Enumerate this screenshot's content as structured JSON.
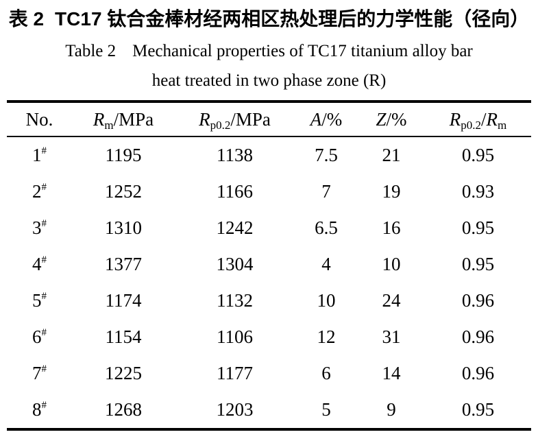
{
  "page": {
    "background_color": "#ffffff",
    "text_color": "#000000"
  },
  "titles": {
    "chinese_prefix": "表 2",
    "chinese_text": "TC17 钛合金棒材经两相区热处理后的力学性能（径向）",
    "english_prefix": "Table 2",
    "english_text": "Mechanical properties of TC17 titanium alloy bar",
    "english_line2": "heat treated in two phase zone (R)"
  },
  "table": {
    "superscript_mark": "#",
    "columns": [
      {
        "label": "No."
      },
      {
        "symbol": "R",
        "sub": "m",
        "suffix": "/MPa"
      },
      {
        "symbol": "R",
        "sub": "p0.2",
        "suffix": "/MPa"
      },
      {
        "symbol": "A",
        "suffix": "/%"
      },
      {
        "symbol": "Z",
        "suffix": "/%"
      },
      {
        "symbol": "R",
        "sub": "p0.2",
        "slash": "/",
        "symbol2": "R",
        "sub2": "m"
      }
    ],
    "rows": [
      {
        "no": "1",
        "rm": "1195",
        "rp02": "1138",
        "a": "7.5",
        "z": "21",
        "ratio": "0.95"
      },
      {
        "no": "2",
        "rm": "1252",
        "rp02": "1166",
        "a": "7",
        "z": "19",
        "ratio": "0.93"
      },
      {
        "no": "3",
        "rm": "1310",
        "rp02": "1242",
        "a": "6.5",
        "z": "16",
        "ratio": "0.95"
      },
      {
        "no": "4",
        "rm": "1377",
        "rp02": "1304",
        "a": "4",
        "z": "10",
        "ratio": "0.95"
      },
      {
        "no": "5",
        "rm": "1174",
        "rp02": "1132",
        "a": "10",
        "z": "24",
        "ratio": "0.96"
      },
      {
        "no": "6",
        "rm": "1154",
        "rp02": "1106",
        "a": "12",
        "z": "31",
        "ratio": "0.96"
      },
      {
        "no": "7",
        "rm": "1225",
        "rp02": "1177",
        "a": "6",
        "z": "14",
        "ratio": "0.96"
      },
      {
        "no": "8",
        "rm": "1268",
        "rp02": "1203",
        "a": "5",
        "z": "9",
        "ratio": "0.95"
      }
    ]
  }
}
